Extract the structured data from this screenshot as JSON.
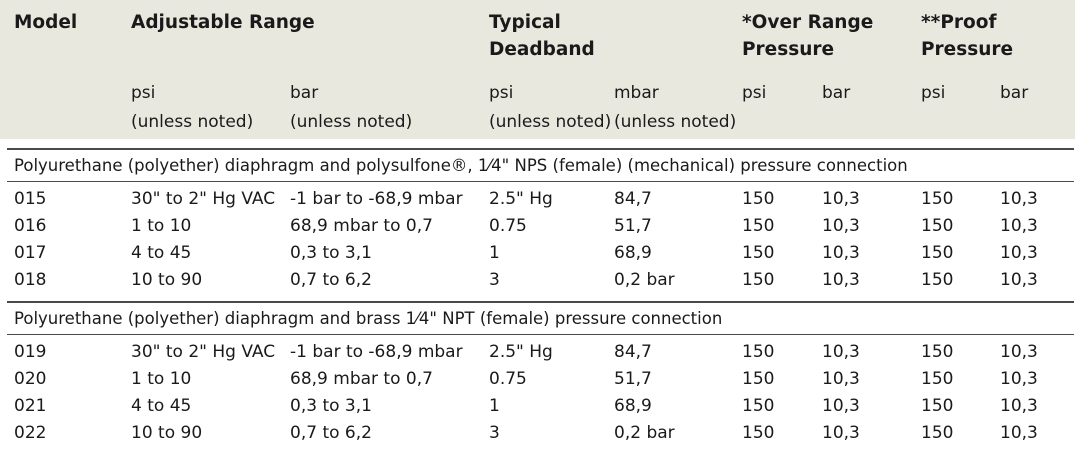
{
  "header": {
    "model": "Model",
    "adjustable_range": "Adjustable Range",
    "typical_deadband": [
      "Typical",
      "Deadband"
    ],
    "over_range": [
      "*Over Range",
      "Pressure"
    ],
    "proof": [
      "**Proof",
      "Pressure"
    ]
  },
  "subheader": {
    "adj_psi": [
      "psi",
      "(unless noted)"
    ],
    "adj_bar": [
      "bar",
      "(unless noted)"
    ],
    "db_psi": [
      "psi",
      "(unless noted)"
    ],
    "db_mbar": [
      "mbar",
      "(unless noted)"
    ],
    "or_psi": "psi",
    "or_bar": "bar",
    "proof_psi": "psi",
    "proof_bar": "bar"
  },
  "sections": [
    {
      "title": "Polyurethane (polyether) diaphragm and polysulfone®, 1⁄4\" NPS (female) (mechanical) pressure connection",
      "rows": [
        [
          "015",
          "30\" to 2\" Hg VAC",
          "-1 bar to -68,9 mbar",
          "2.5\" Hg",
          "84,7",
          "150",
          "10,3",
          "150",
          "10,3"
        ],
        [
          "016",
          "1 to 10",
          "68,9 mbar to 0,7",
          "0.75",
          "51,7",
          "150",
          "10,3",
          "150",
          "10,3"
        ],
        [
          "017",
          "4 to 45",
          "0,3 to 3,1",
          "1",
          "68,9",
          "150",
          "10,3",
          "150",
          "10,3"
        ],
        [
          "018",
          "10 to 90",
          "0,7 to 6,2",
          "3",
          "0,2 bar",
          "150",
          "10,3",
          "150",
          "10,3"
        ]
      ]
    },
    {
      "title": "Polyurethane (polyether) diaphragm and brass 1⁄4\" NPT (female) pressure connection",
      "rows": [
        [
          "019",
          "30\" to 2\" Hg VAC",
          "-1 bar to -68,9 mbar",
          "2.5\" Hg",
          "84,7",
          "150",
          "10,3",
          "150",
          "10,3"
        ],
        [
          "020",
          "1 to 10",
          "68,9 mbar to 0,7",
          "0.75",
          "51,7",
          "150",
          "10,3",
          "150",
          "10,3"
        ],
        [
          "021",
          "4 to 45",
          "0,3 to 3,1",
          "1",
          "68,9",
          "150",
          "10,3",
          "150",
          "10,3"
        ],
        [
          "022",
          "10 to 90",
          "0,7 to 6,2",
          "3",
          "0,2 bar",
          "150",
          "10,3",
          "150",
          "10,3"
        ]
      ]
    }
  ]
}
